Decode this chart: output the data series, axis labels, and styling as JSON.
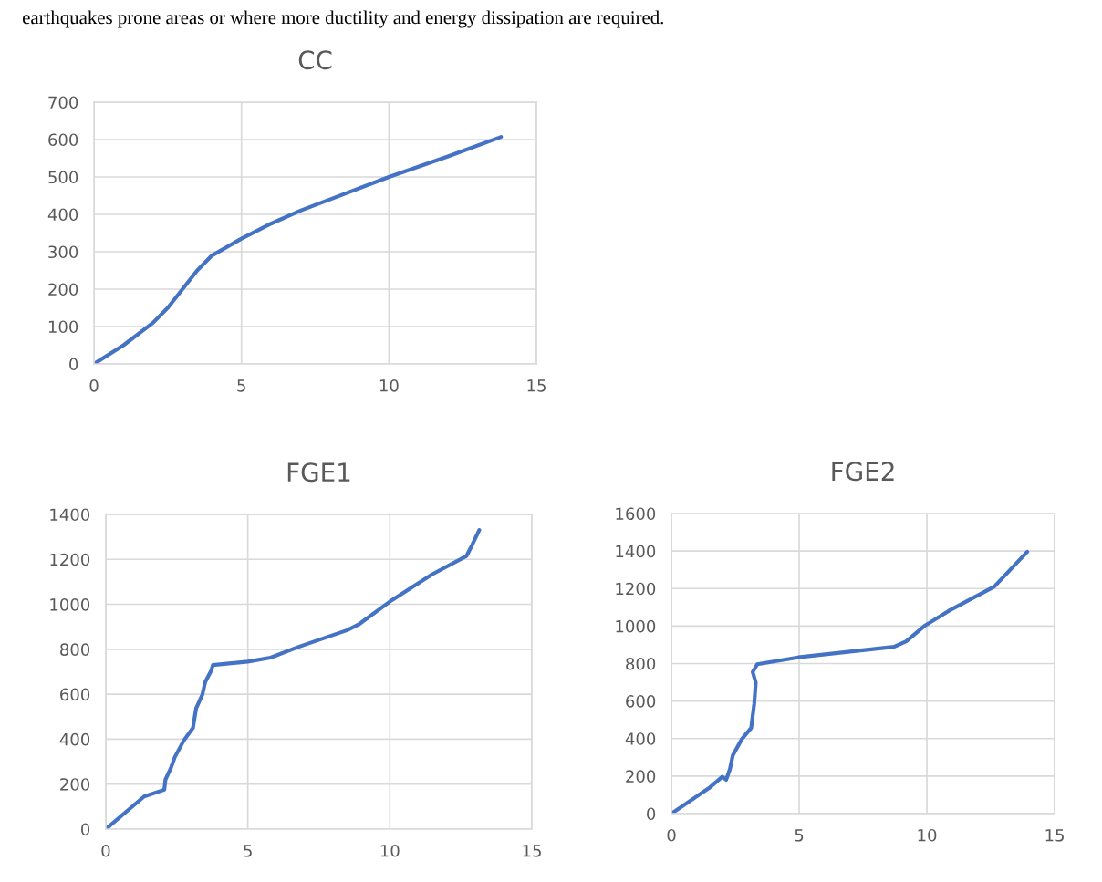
{
  "chart_data": [
    {
      "type": "line",
      "title": "CC",
      "annotations": [
        "earthquakes prone areas or where more ductility and energy dissipation are required."
      ],
      "xlim": [
        0,
        15
      ],
      "xticks": [
        0,
        5,
        10,
        15
      ],
      "ylim": [
        0,
        700
      ],
      "yticks": [
        0,
        100,
        200,
        300,
        400,
        500,
        600,
        700
      ],
      "grid": true,
      "series": [
        {
          "color": "#4472c4",
          "x": [
            0,
            1,
            2,
            2.5,
            3,
            3.5,
            4,
            5,
            6,
            7,
            8,
            10,
            12,
            13.8
          ],
          "values": [
            0,
            50,
            110,
            150,
            200,
            250,
            290,
            335,
            375,
            410,
            440,
            500,
            555,
            607
          ]
        }
      ]
    },
    {
      "type": "line",
      "title": "FGE1",
      "xlim": [
        0,
        15
      ],
      "xticks": [
        0,
        5,
        10,
        15
      ],
      "ylim": [
        0,
        1400
      ],
      "yticks": [
        0,
        200,
        400,
        600,
        800,
        1000,
        1200,
        1400
      ],
      "grid": true,
      "series": [
        {
          "color": "#4472c4",
          "x": [
            0,
            1.35,
            2.06,
            2.1,
            2.28,
            2.43,
            2.75,
            3.07,
            3.18,
            3.4,
            3.5,
            3.72,
            3.77,
            5.0,
            5.8,
            6.77,
            8.5,
            8.9,
            10,
            11.5,
            12.7,
            12.9,
            13.15
          ],
          "values": [
            0,
            145,
            175,
            220,
            268,
            320,
            395,
            450,
            537,
            598,
            654,
            707,
            730,
            745,
            763,
            810,
            885,
            910,
            1012,
            1134,
            1215,
            1264,
            1330
          ]
        }
      ]
    },
    {
      "type": "line",
      "title": "FGE2",
      "xlim": [
        0,
        15
      ],
      "xticks": [
        0,
        5,
        10,
        15
      ],
      "ylim": [
        0,
        1600
      ],
      "yticks": [
        0,
        200,
        400,
        600,
        800,
        1000,
        1200,
        1400,
        1600
      ],
      "grid": true,
      "series": [
        {
          "color": "#4472c4",
          "x": [
            0,
            1.51,
            1.99,
            2.14,
            2.29,
            2.4,
            2.76,
            3.12,
            3.24,
            3.3,
            3.18,
            3.36,
            4.96,
            8.71,
            9.19,
            9.9,
            10.86,
            12.64,
            13.93
          ],
          "values": [
            0,
            140,
            196,
            180,
            237,
            310,
            398,
            456,
            585,
            699,
            755,
            796,
            833,
            889,
            918,
            1000,
            1081,
            1210,
            1396
          ]
        }
      ]
    }
  ]
}
